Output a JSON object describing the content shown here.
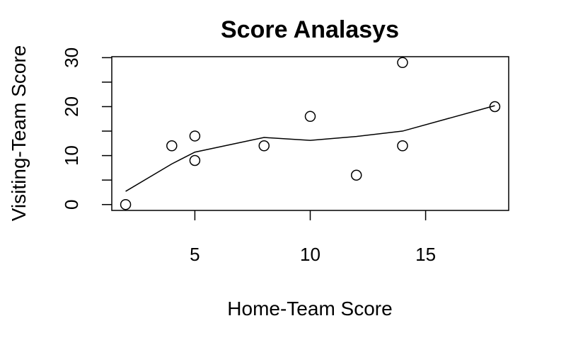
{
  "chart_data": {
    "type": "scatter",
    "title": "Score Analasys",
    "xlabel": "Home-Team Score",
    "ylabel": "Visiting-Team Score",
    "xlim": [
      1.4,
      18.6
    ],
    "ylim": [
      -1.2,
      30.2
    ],
    "x_ticks": [
      5,
      10,
      15
    ],
    "y_ticks": [
      0,
      10,
      20,
      30
    ],
    "grid": false,
    "marker": "open-circle",
    "series": [
      {
        "points": [
          {
            "x": 2,
            "y": 0
          },
          {
            "x": 4,
            "y": 12
          },
          {
            "x": 5,
            "y": 14
          },
          {
            "x": 5,
            "y": 9
          },
          {
            "x": 8,
            "y": 12
          },
          {
            "x": 10,
            "y": 18
          },
          {
            "x": 12,
            "y": 6
          },
          {
            "x": 14,
            "y": 29
          },
          {
            "x": 14,
            "y": 12
          },
          {
            "x": 18,
            "y": 20
          }
        ]
      }
    ],
    "smooth_line": [
      {
        "x": 2,
        "y": 2.7
      },
      {
        "x": 4,
        "y": 8.3
      },
      {
        "x": 5,
        "y": 10.7
      },
      {
        "x": 8,
        "y": 13.7
      },
      {
        "x": 10,
        "y": 13.1
      },
      {
        "x": 12,
        "y": 13.9
      },
      {
        "x": 14,
        "y": 15.0
      },
      {
        "x": 18,
        "y": 20.2
      }
    ],
    "colors": {
      "points": "#000000",
      "line": "#000000",
      "frame": "#000000"
    }
  }
}
